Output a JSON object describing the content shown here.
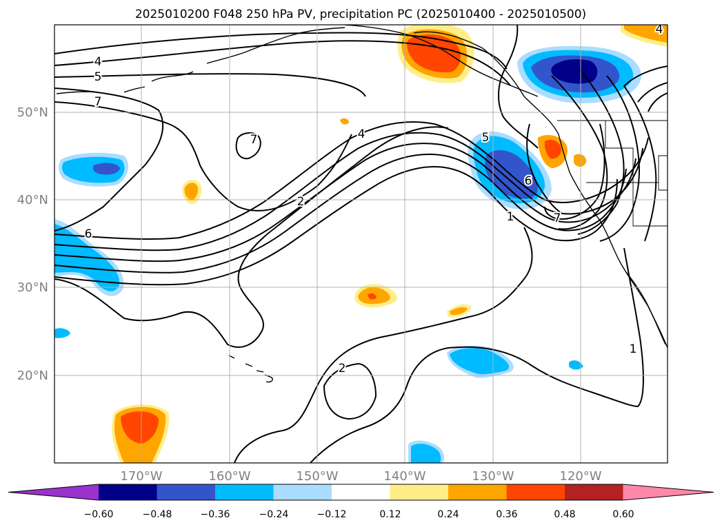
{
  "figure": {
    "title": "2025010200 F048 250 hPa PV, precipitation PC (2025010400 - 2025010500)"
  },
  "map": {
    "lat_ticks": [
      "50°N",
      "40°N",
      "30°N",
      "20°N"
    ],
    "lon_ticks": [
      "170°W",
      "160°W",
      "150°W",
      "140°W",
      "130°W",
      "120°W"
    ],
    "contour_labels": [
      "4",
      "5",
      "7",
      "7",
      "6",
      "2",
      "4",
      "5",
      "6",
      "1",
      "2",
      "1",
      "4",
      "7"
    ]
  },
  "colorbar": {
    "ticks": [
      "−0.60",
      "−0.48",
      "−0.36",
      "−0.24",
      "−0.12",
      "0.12",
      "0.24",
      "0.36",
      "0.48",
      "0.60"
    ],
    "colors": [
      "#9933cc",
      "#000088",
      "#3355cc",
      "#00bbff",
      "#aaddff",
      "#ffffff",
      "#ffee88",
      "#ffa500",
      "#ff4500",
      "#b22222",
      "#ff88aa"
    ]
  },
  "colors": {
    "land_border": "#000000",
    "grid": "#b0b0b0",
    "tick_label": "#808080"
  }
}
